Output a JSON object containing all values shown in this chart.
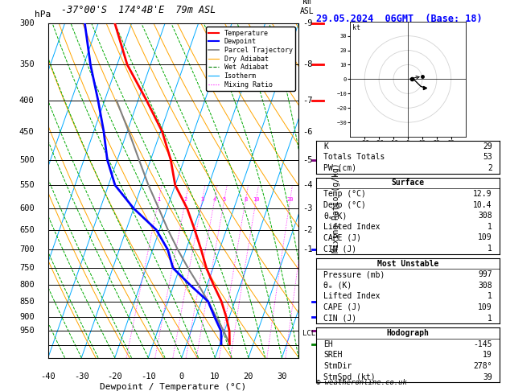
{
  "title_left": "-37°00'S  174°4B'E  79m ASL",
  "title_right": "29.05.2024  06GMT  (Base: 18)",
  "xlabel": "Dewpoint / Temperature (°C)",
  "ylabel_mix": "Mixing Ratio (g/kg)",
  "p_min": 300,
  "p_max": 1050,
  "T_min": -40,
  "T_max": 35,
  "pressure_levels": [
    300,
    350,
    400,
    450,
    500,
    550,
    600,
    650,
    700,
    750,
    800,
    850,
    900,
    950,
    1000
  ],
  "pressure_labels": [
    300,
    350,
    400,
    450,
    500,
    550,
    600,
    650,
    700,
    750,
    800,
    850,
    900,
    950
  ],
  "temp_ticks": [
    -40,
    -30,
    -20,
    -10,
    0,
    10,
    20,
    30
  ],
  "skew_factor": 35.0,
  "isotherm_color": "#00AAFF",
  "dry_adiabat_color": "#FFA500",
  "wet_adiabat_color": "#00AA00",
  "mixing_ratio_color": "#FF00FF",
  "mixing_ratio_vals": [
    1,
    2,
    3,
    4,
    5,
    8,
    10,
    20,
    28
  ],
  "temp_profile_p": [
    997,
    950,
    900,
    850,
    800,
    750,
    700,
    650,
    600,
    550,
    500,
    450,
    400,
    350,
    300
  ],
  "temp_profile_T": [
    12.9,
    11.5,
    9.0,
    6.0,
    2.0,
    -2.0,
    -5.5,
    -9.5,
    -14.0,
    -20.0,
    -24.0,
    -29.5,
    -37.5,
    -47.0,
    -55.0
  ],
  "dewp_profile_p": [
    997,
    950,
    900,
    850,
    800,
    750,
    700,
    650,
    600,
    550,
    500,
    450,
    400,
    350,
    300
  ],
  "dewp_profile_T": [
    10.4,
    9.0,
    5.5,
    2.0,
    -5.0,
    -12.0,
    -15.5,
    -21.0,
    -30.0,
    -38.0,
    -43.0,
    -47.0,
    -52.0,
    -58.0,
    -64.0
  ],
  "parcel_profile_p": [
    997,
    950,
    900,
    850,
    800,
    750,
    700,
    650,
    600,
    550,
    500,
    450,
    400
  ],
  "parcel_profile_T": [
    12.9,
    9.8,
    6.0,
    2.0,
    -2.5,
    -7.5,
    -12.5,
    -17.5,
    -22.5,
    -28.0,
    -33.5,
    -39.5,
    -46.5
  ],
  "lcl_pressure": 960,
  "color_temp": "#FF0000",
  "color_dewp": "#0000FF",
  "color_parcel": "#808080",
  "km_map": {
    "300": 9,
    "350": 8,
    "400": 7,
    "450": 6,
    "500": 5,
    "550": 4,
    "600": 3,
    "650": 2,
    "700": 1
  },
  "wind_barb_pressures": [
    300,
    350,
    400,
    500,
    700,
    850,
    900,
    950,
    997
  ],
  "wind_barb_colors": [
    "red",
    "red",
    "red",
    "purple",
    "blue",
    "blue",
    "blue",
    "purple",
    "green"
  ],
  "hodo_u": [
    3,
    3,
    4,
    5,
    6,
    7,
    8,
    9,
    12
  ],
  "hodo_v": [
    0,
    1,
    0,
    -1,
    -2,
    -3,
    -4,
    -5,
    -6
  ],
  "storm_u": 10,
  "storm_v": 2,
  "stats_indices": [
    [
      "K",
      "29"
    ],
    [
      "Totals Totals",
      "53"
    ],
    [
      "PW (cm)",
      "2"
    ]
  ],
  "stats_surface_title": "Surface",
  "stats_surface": [
    [
      "Temp (°C)",
      "12.9"
    ],
    [
      "Dewp (°C)",
      "10.4"
    ],
    [
      "θₑ(K)",
      "308"
    ],
    [
      "Lifted Index",
      "1"
    ],
    [
      "CAPE (J)",
      "109"
    ],
    [
      "CIN (J)",
      "1"
    ]
  ],
  "stats_mu_title": "Most Unstable",
  "stats_mu": [
    [
      "Pressure (mb)",
      "997"
    ],
    [
      "θₑ (K)",
      "308"
    ],
    [
      "Lifted Index",
      "1"
    ],
    [
      "CAPE (J)",
      "109"
    ],
    [
      "CIN (J)",
      "1"
    ]
  ],
  "stats_hodo_title": "Hodograph",
  "stats_hodo": [
    [
      "EH",
      "-145"
    ],
    [
      "SREH",
      "19"
    ],
    [
      "StmDir",
      "278°"
    ],
    [
      "StmSpd (kt)",
      "39"
    ]
  ],
  "copyright": "© weatheronline.co.uk"
}
